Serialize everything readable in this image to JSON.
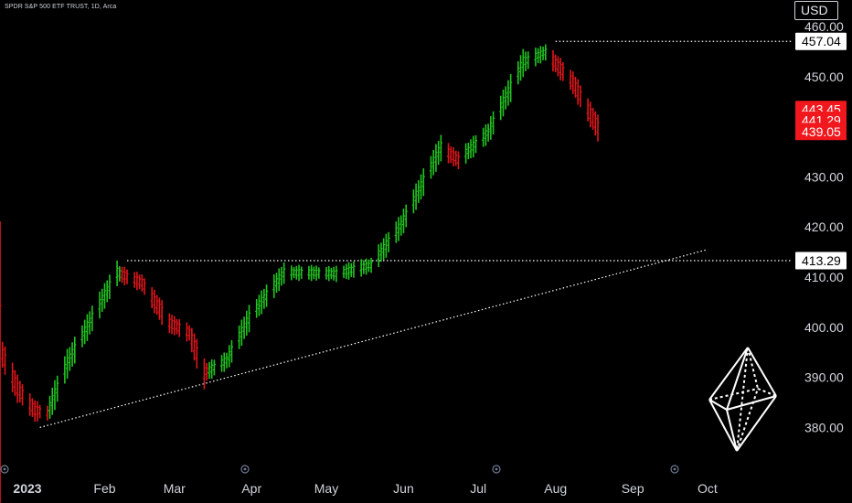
{
  "header": {
    "symbol_title": "SPDR S&P 500 ETF TRUST, 1D, Arca",
    "currency": "USD"
  },
  "chart_data": {
    "type": "bar",
    "style": "ohlc-colored-bars",
    "ylim": [
      373,
      462
    ],
    "y_ticks": [
      "460.00",
      "450.00",
      "440.00",
      "430.00",
      "420.00",
      "410.00",
      "400.00",
      "390.00",
      "380.00"
    ],
    "y_tick_values": [
      460,
      450,
      440,
      430,
      420,
      410,
      400,
      390,
      380
    ],
    "x_ticks": [
      "2023",
      "Feb",
      "Mar",
      "Apr",
      "May",
      "Jun",
      "Jul",
      "Aug",
      "Sep",
      "Oct"
    ],
    "x_tick_dates": [
      "2023-01-01",
      "2023-02-01",
      "2023-03-01",
      "2023-04-01",
      "2023-05-01",
      "2023-06-01",
      "2023-07-01",
      "2023-08-01",
      "2023-09-01",
      "2023-10-01"
    ],
    "colors": {
      "up": "#22c521",
      "down": "#e0161b",
      "label_white_bg": "#ffffff",
      "label_red_bg": "#f0171d"
    },
    "price_labels": [
      {
        "text": "457.04",
        "value": 457.04,
        "style": "white"
      },
      {
        "text": "443.45",
        "value": 443.45,
        "style": "red"
      },
      {
        "text": "441.29",
        "value": 441.29,
        "style": "red"
      },
      {
        "text": "439.05",
        "value": 439.05,
        "style": "red"
      },
      {
        "text": "413.29",
        "value": 413.29,
        "style": "white"
      }
    ],
    "horizontal_levels": [
      {
        "value": 457.04,
        "from": "2023-08-01",
        "to": "axis"
      },
      {
        "value": 413.29,
        "from": "2023-02-10",
        "to": "axis"
      }
    ],
    "trend_line": {
      "from": {
        "date": "2023-01-06",
        "value": 380
      },
      "to": {
        "date": "2023-10-01",
        "value": 415.5
      }
    },
    "anchors": [
      {
        "date": "2022-12-20",
        "value": 397
      },
      {
        "date": "2022-12-28",
        "value": 388
      },
      {
        "date": "2023-01-04",
        "value": 383.5
      },
      {
        "date": "2023-01-09",
        "value": 383
      },
      {
        "date": "2023-01-17",
        "value": 393
      },
      {
        "date": "2023-01-27",
        "value": 402
      },
      {
        "date": "2023-02-06",
        "value": 411
      },
      {
        "date": "2023-02-16",
        "value": 409
      },
      {
        "date": "2023-02-27",
        "value": 401
      },
      {
        "date": "2023-03-07",
        "value": 399
      },
      {
        "date": "2023-03-13",
        "value": 391
      },
      {
        "date": "2023-03-22",
        "value": 393.5
      },
      {
        "date": "2023-03-31",
        "value": 402
      },
      {
        "date": "2023-04-14",
        "value": 411
      },
      {
        "date": "2023-04-24",
        "value": 411
      },
      {
        "date": "2023-05-05",
        "value": 410.8
      },
      {
        "date": "2023-05-19",
        "value": 412.5
      },
      {
        "date": "2023-05-31",
        "value": 420.5
      },
      {
        "date": "2023-06-16",
        "value": 436
      },
      {
        "date": "2023-06-23",
        "value": 433.5
      },
      {
        "date": "2023-07-05",
        "value": 439
      },
      {
        "date": "2023-07-19",
        "value": 453
      },
      {
        "date": "2023-07-28",
        "value": 455
      },
      {
        "date": "2023-08-08",
        "value": 449
      },
      {
        "date": "2023-08-18",
        "value": 440
      }
    ]
  }
}
